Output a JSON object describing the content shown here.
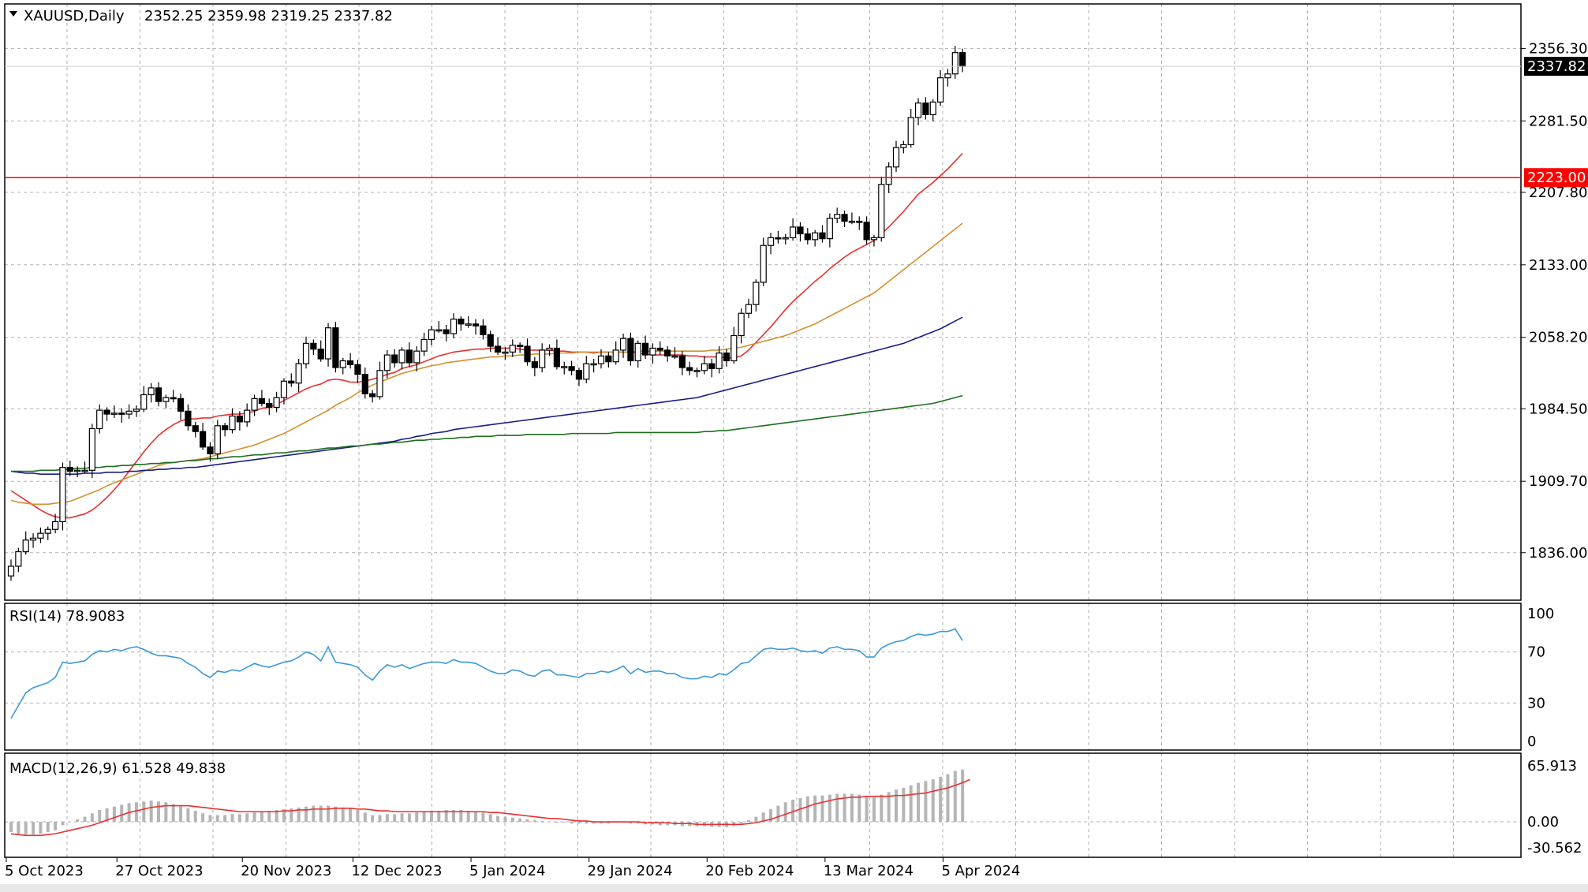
{
  "chart_data": {
    "type": "candlestick",
    "symbol_header": "XAUUSD,Daily",
    "ohlc_header": "2352.25 2359.98 2319.25 2337.82",
    "price_ticks": [
      "2356.30",
      "2281.50",
      "2207.80",
      "2133.00",
      "2058.20",
      "1984.50",
      "1909.70",
      "1836.00"
    ],
    "price_tick_values": [
      2356.3,
      2281.5,
      2207.8,
      2133.0,
      2058.2,
      1984.5,
      1909.7,
      1836.0
    ],
    "current_price_label": "2337.82",
    "current_price": 2337.82,
    "hline_label": "2223.00",
    "hline_value": 2223.0,
    "ylim": [
      1800,
      2390
    ],
    "date_labels": [
      "5 Oct 2023",
      "27 Oct 2023",
      "20 Nov 2023",
      "12 Dec 2023",
      "5 Jan 2024",
      "29 Jan 2024",
      "20 Feb 2024",
      "13 Mar 2024",
      "5 Apr 2024"
    ],
    "date_label_index": [
      0,
      15,
      32,
      47,
      63,
      79,
      95,
      111,
      127
    ],
    "closes": [
      1822,
      1837,
      1849,
      1851,
      1856,
      1860,
      1868,
      1924,
      1920,
      1921,
      1921,
      1964,
      1983,
      1979,
      1980,
      1979,
      1982,
      1984,
      1999,
      2006,
      1992,
      1996,
      1995,
      1982,
      1967,
      1961,
      1945,
      1938,
      1967,
      1963,
      1977,
      1971,
      1983,
      1995,
      1990,
      1986,
      1996,
      2013,
      2011,
      2031,
      2052,
      2046,
      2036,
      2068,
      2027,
      2034,
      2030,
      2020,
      2000,
      1997,
      2024,
      2040,
      2032,
      2045,
      2032,
      2044,
      2056,
      2066,
      2066,
      2062,
      2077,
      2072,
      2072,
      2070,
      2061,
      2049,
      2043,
      2043,
      2050,
      2049,
      2033,
      2027,
      2045,
      2047,
      2028,
      2028,
      2024,
      2015,
      2031,
      2031,
      2039,
      2033,
      2045,
      2057,
      2034,
      2052,
      2040,
      2047,
      2045,
      2039,
      2039,
      2027,
      2024,
      2024,
      2031,
      2026,
      2042,
      2034,
      2060,
      2083,
      2092,
      2115,
      2153,
      2161,
      2160,
      2161,
      2172,
      2165,
      2159,
      2166,
      2160,
      2181,
      2185,
      2178,
      2178,
      2177,
      2159,
      2161,
      2216,
      2234,
      2254,
      2257,
      2285,
      2300,
      2288,
      2301,
      2326,
      2330,
      2352,
      2337.82
    ],
    "ma_series": [
      {
        "color": "#e83030",
        "values": [
          1900,
          1895,
          1890,
          1885,
          1880,
          1876,
          1873,
          1872,
          1872,
          1874,
          1876,
          1880,
          1886,
          1893,
          1901,
          1910,
          1920,
          1930,
          1940,
          1949,
          1957,
          1963,
          1968,
          1972,
          1974,
          1974,
          1975,
          1975,
          1977,
          1978,
          1979,
          1979,
          1980,
          1982,
          1985,
          1986,
          1989,
          1993,
          1997,
          2001,
          2005,
          2008,
          2010,
          2014,
          2015,
          2014,
          2012,
          2012,
          2013,
          2015,
          2017,
          2020,
          2022,
          2026,
          2028,
          2030,
          2033,
          2036,
          2039,
          2041,
          2043,
          2044,
          2045,
          2046,
          2046,
          2047,
          2047,
          2047,
          2047,
          2046,
          2045,
          2045,
          2045,
          2045,
          2044,
          2044,
          2043,
          2043,
          2043,
          2042,
          2043,
          2043,
          2043,
          2043,
          2043,
          2042,
          2041,
          2040,
          2040,
          2040,
          2040,
          2040,
          2039,
          2039,
          2038,
          2038,
          2038,
          2037,
          2037,
          2039,
          2045,
          2053,
          2061,
          2069,
          2078,
          2087,
          2095,
          2102,
          2109,
          2116,
          2122,
          2129,
          2135,
          2141,
          2146,
          2150,
          2154,
          2158,
          2165,
          2172,
          2180,
          2188,
          2197,
          2206,
          2212,
          2218,
          2225,
          2232,
          2240,
          2248
        ]
      },
      {
        "color": "#d4902e",
        "values": [
          1890,
          1888,
          1887,
          1886,
          1886,
          1886,
          1887,
          1888,
          1889,
          1892,
          1895,
          1898,
          1901,
          1905,
          1908,
          1911,
          1914,
          1917,
          1920,
          1923,
          1926,
          1928,
          1929,
          1930,
          1931,
          1932,
          1933,
          1935,
          1937,
          1939,
          1941,
          1943,
          1945,
          1947,
          1950,
          1953,
          1956,
          1959,
          1963,
          1967,
          1971,
          1975,
          1979,
          1983,
          1988,
          1992,
          1996,
          2001,
          2005,
          2009,
          2012,
          2015,
          2018,
          2021,
          2023,
          2025,
          2027,
          2029,
          2030,
          2032,
          2033,
          2034,
          2035,
          2036,
          2037,
          2038,
          2038,
          2039,
          2039,
          2040,
          2040,
          2041,
          2041,
          2041,
          2042,
          2042,
          2042,
          2043,
          2043,
          2043,
          2043,
          2043,
          2043,
          2043,
          2043,
          2044,
          2044,
          2044,
          2044,
          2044,
          2044,
          2044,
          2044,
          2044,
          2044,
          2045,
          2045,
          2046,
          2047,
          2048,
          2050,
          2052,
          2054,
          2056,
          2058,
          2060,
          2063,
          2066,
          2069,
          2072,
          2076,
          2080,
          2084,
          2088,
          2092,
          2096,
          2100,
          2104,
          2110,
          2116,
          2122,
          2128,
          2134,
          2140,
          2146,
          2152,
          2158,
          2164,
          2170,
          2176
        ]
      },
      {
        "color": "#1a1e8a",
        "values": [
          1920,
          1919,
          1918,
          1918,
          1917,
          1917,
          1917,
          1917,
          1917,
          1917,
          1918,
          1918,
          1918,
          1919,
          1919,
          1919,
          1920,
          1920,
          1921,
          1921,
          1922,
          1922,
          1923,
          1923,
          1924,
          1924,
          1925,
          1926,
          1927,
          1928,
          1929,
          1930,
          1931,
          1932,
          1933,
          1934,
          1935,
          1936,
          1937,
          1938,
          1939,
          1940,
          1941,
          1942,
          1943,
          1944,
          1945,
          1946,
          1947,
          1948,
          1949,
          1950,
          1951,
          1953,
          1954,
          1956,
          1957,
          1959,
          1960,
          1961,
          1963,
          1964,
          1965,
          1966,
          1967,
          1968,
          1969,
          1970,
          1971,
          1972,
          1973,
          1974,
          1975,
          1976,
          1977,
          1978,
          1979,
          1980,
          1981,
          1982,
          1983,
          1984,
          1985,
          1986,
          1987,
          1988,
          1989,
          1990,
          1991,
          1992,
          1993,
          1994,
          1995,
          1996,
          1998,
          2000,
          2002,
          2004,
          2006,
          2008,
          2010,
          2012,
          2014,
          2016,
          2018,
          2020,
          2022,
          2024,
          2026,
          2028,
          2030,
          2032,
          2034,
          2036,
          2038,
          2040,
          2042,
          2044,
          2046,
          2048,
          2050,
          2052,
          2055,
          2058,
          2061,
          2064,
          2067,
          2071,
          2075,
          2079
        ]
      },
      {
        "color": "#1e6e1e",
        "values": [
          1920,
          1920,
          1920,
          1920,
          1921,
          1921,
          1921,
          1922,
          1922,
          1923,
          1923,
          1924,
          1924,
          1925,
          1925,
          1926,
          1926,
          1927,
          1927,
          1928,
          1928,
          1929,
          1929,
          1930,
          1931,
          1931,
          1932,
          1933,
          1933,
          1934,
          1935,
          1935,
          1936,
          1937,
          1937,
          1938,
          1939,
          1939,
          1940,
          1941,
          1941,
          1942,
          1943,
          1944,
          1944,
          1945,
          1946,
          1946,
          1947,
          1948,
          1948,
          1949,
          1950,
          1950,
          1951,
          1952,
          1952,
          1953,
          1953,
          1954,
          1954,
          1955,
          1955,
          1956,
          1956,
          1956,
          1957,
          1957,
          1957,
          1957,
          1958,
          1958,
          1958,
          1958,
          1958,
          1958,
          1959,
          1959,
          1959,
          1959,
          1959,
          1959,
          1960,
          1960,
          1960,
          1960,
          1960,
          1960,
          1960,
          1960,
          1960,
          1960,
          1960,
          1960,
          1961,
          1961,
          1962,
          1962,
          1963,
          1964,
          1965,
          1966,
          1967,
          1968,
          1969,
          1970,
          1971,
          1972,
          1973,
          1974,
          1975,
          1976,
          1977,
          1978,
          1979,
          1980,
          1981,
          1982,
          1983,
          1984,
          1985,
          1986,
          1987,
          1988,
          1989,
          1990,
          1992,
          1994,
          1996,
          1998
        ]
      }
    ],
    "rsi": {
      "header": "RSI(14) 78.9083",
      "ticks": [
        "100",
        "70",
        "30",
        "0"
      ],
      "tick_values": [
        100,
        70,
        30,
        0
      ],
      "ylim": [
        0,
        100
      ],
      "color": "#3a9ad9",
      "values": [
        18,
        28,
        38,
        42,
        44,
        46,
        50,
        62,
        61,
        62,
        63,
        68,
        71,
        70,
        72,
        71,
        73,
        74,
        72,
        69,
        67,
        67,
        66,
        65,
        61,
        58,
        53,
        50,
        55,
        54,
        56,
        55,
        58,
        61,
        59,
        58,
        60,
        62,
        63,
        66,
        70,
        68,
        63,
        74,
        62,
        61,
        60,
        58,
        52,
        48,
        55,
        60,
        58,
        60,
        57,
        59,
        61,
        62,
        62,
        61,
        64,
        62,
        62,
        61,
        58,
        55,
        53,
        53,
        56,
        55,
        52,
        51,
        55,
        56,
        52,
        52,
        51,
        50,
        53,
        53,
        55,
        54,
        56,
        59,
        53,
        57,
        54,
        55,
        55,
        53,
        53,
        50,
        49,
        49,
        51,
        50,
        53,
        52,
        56,
        61,
        62,
        67,
        72,
        73,
        72,
        72,
        73,
        71,
        70,
        71,
        69,
        73,
        74,
        72,
        72,
        71,
        66,
        66,
        73,
        76,
        78,
        79,
        82,
        84,
        83,
        84,
        86,
        86,
        88,
        78.9
      ]
    },
    "macd": {
      "header": "MACD(12,26,9) 61.528 49.838",
      "ticks": [
        "65.913",
        "0.00",
        "-30.562"
      ],
      "tick_values": [
        65.913,
        0.0,
        -30.562
      ],
      "ylim": [
        -30.562,
        65.913
      ],
      "hist_color": "#b5b5b5",
      "signal_color": "#e83030",
      "hist": [
        -12,
        -14,
        -15,
        -15,
        -14,
        -12,
        -10,
        -4,
        0,
        3,
        6,
        10,
        14,
        16,
        18,
        20,
        22,
        23,
        24,
        25,
        24,
        23,
        21,
        19,
        16,
        13,
        10,
        8,
        8,
        8,
        9,
        9,
        10,
        11,
        12,
        13,
        14,
        15,
        16,
        17,
        18,
        19,
        19,
        19,
        18,
        17,
        16,
        14,
        11,
        8,
        8,
        9,
        9,
        10,
        10,
        11,
        12,
        13,
        13,
        14,
        14,
        14,
        13,
        12,
        11,
        9,
        7,
        6,
        5,
        4,
        3,
        2,
        1,
        0,
        -1,
        -1,
        -2,
        -2,
        -2,
        -2,
        -2,
        -2,
        -1,
        -1,
        -2,
        -2,
        -3,
        -3,
        -4,
        -4,
        -4,
        -5,
        -5,
        -5,
        -5,
        -6,
        -6,
        -6,
        -5,
        -2,
        2,
        6,
        11,
        15,
        19,
        23,
        26,
        28,
        30,
        31,
        31,
        32,
        33,
        33,
        33,
        32,
        30,
        29,
        32,
        35,
        38,
        40,
        43,
        46,
        48,
        50,
        53,
        56,
        60,
        61.5
      ],
      "signal": [
        -14,
        -15,
        -16,
        -16,
        -16,
        -15,
        -14,
        -12,
        -10,
        -8,
        -6,
        -4,
        -1,
        2,
        5,
        8,
        11,
        13,
        15,
        17,
        18,
        19,
        19,
        19,
        19,
        18,
        17,
        16,
        15,
        14,
        13,
        12,
        12,
        12,
        12,
        12,
        12,
        13,
        13,
        14,
        14,
        15,
        15,
        15,
        16,
        16,
        16,
        15,
        15,
        14,
        13,
        13,
        12,
        12,
        12,
        12,
        12,
        12,
        12,
        12,
        12,
        12,
        12,
        12,
        12,
        11,
        11,
        10,
        9,
        8,
        7,
        6,
        5,
        4,
        4,
        3,
        2,
        1,
        1,
        0,
        0,
        0,
        0,
        0,
        0,
        0,
        -1,
        -1,
        -1,
        -1,
        -2,
        -2,
        -2,
        -3,
        -3,
        -3,
        -3,
        -3,
        -3,
        -3,
        -2,
        -1,
        1,
        3,
        6,
        9,
        12,
        15,
        18,
        21,
        23,
        25,
        27,
        28,
        29,
        29,
        30,
        30,
        30,
        30,
        31,
        31,
        32,
        33,
        34,
        36,
        38,
        40,
        43,
        46,
        49.8
      ]
    }
  }
}
